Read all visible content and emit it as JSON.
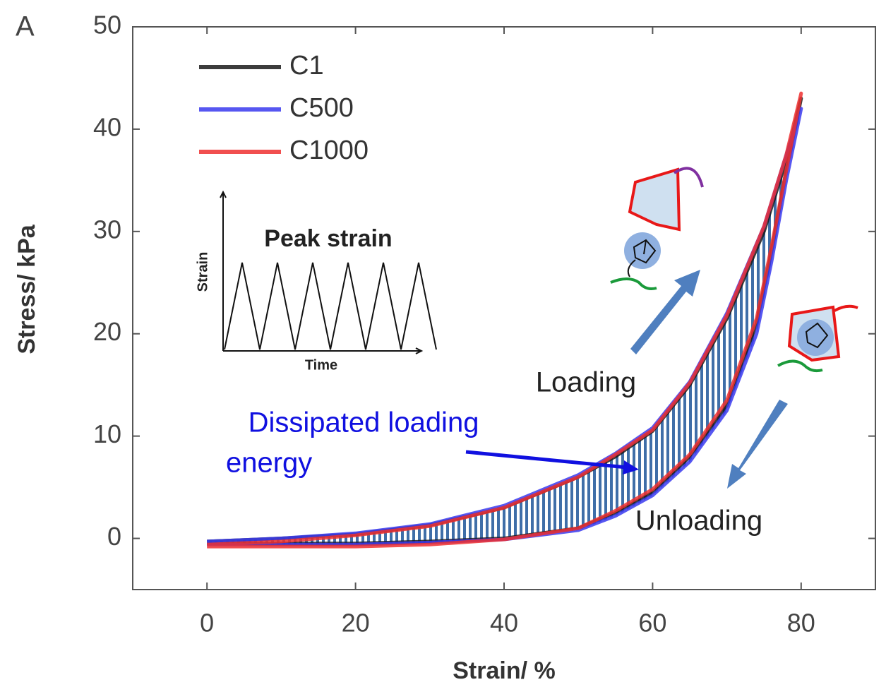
{
  "panel_label": "A",
  "chart_data": {
    "type": "line",
    "xlabel": "Strain/ %",
    "ylabel": "Stress/ kPa",
    "xlim": [
      -10,
      90
    ],
    "ylim": [
      -5,
      50
    ],
    "xticks": [
      0,
      20,
      40,
      60,
      80
    ],
    "yticks": [
      0,
      10,
      20,
      30,
      40,
      50
    ],
    "legend": "upper left",
    "series": [
      {
        "name": "C1",
        "color": "#1a1a1a",
        "x": [
          0,
          10,
          20,
          30,
          40,
          50,
          55,
          60,
          65,
          70,
          75,
          78,
          80,
          78,
          76,
          74,
          70,
          65,
          60,
          55,
          50,
          40,
          30,
          20,
          10,
          0
        ],
        "values": [
          -0.3,
          0,
          0.4,
          1.3,
          3,
          6,
          8,
          10.5,
          15,
          21.5,
          30,
          37,
          43,
          36,
          28,
          21,
          13,
          8,
          4.5,
          2.5,
          1,
          0,
          -0.3,
          -0.5,
          -0.5,
          -0.5
        ]
      },
      {
        "name": "C500",
        "color": "#3a3aee",
        "x": [
          0,
          10,
          20,
          30,
          40,
          50,
          55,
          60,
          65,
          70,
          75,
          78,
          80,
          78,
          76,
          74,
          70,
          65,
          60,
          55,
          50,
          40,
          30,
          20,
          10,
          0
        ],
        "values": [
          -0.3,
          0,
          0.5,
          1.4,
          3.2,
          6.2,
          8.3,
          10.8,
          15.3,
          22,
          30.5,
          37.5,
          42,
          35,
          27,
          20,
          12.5,
          7.5,
          4.2,
          2.2,
          0.8,
          -0.1,
          -0.4,
          -0.6,
          -0.6,
          -0.6
        ]
      },
      {
        "name": "C1000",
        "color": "#ee3030",
        "x": [
          0,
          10,
          20,
          30,
          40,
          50,
          55,
          60,
          65,
          70,
          75,
          78,
          80,
          78,
          76,
          74,
          70,
          65,
          60,
          55,
          50,
          40,
          30,
          20,
          10,
          0
        ],
        "values": [
          -0.6,
          -0.3,
          0.3,
          1.2,
          3,
          6,
          8.2,
          10.6,
          15.2,
          21.8,
          30.5,
          37.5,
          43.5,
          36,
          28.5,
          21.5,
          13.5,
          8.2,
          4.8,
          2.7,
          1,
          -0.1,
          -0.6,
          -0.8,
          -0.8,
          -0.8
        ]
      }
    ],
    "annotations": {
      "dissipated": [
        "Dissipated loading",
        "energy"
      ],
      "loading": "Loading",
      "unloading": "Unloading",
      "inset": {
        "title": "Peak strain",
        "xlabel": "Time",
        "ylabel": "Strain"
      }
    }
  }
}
